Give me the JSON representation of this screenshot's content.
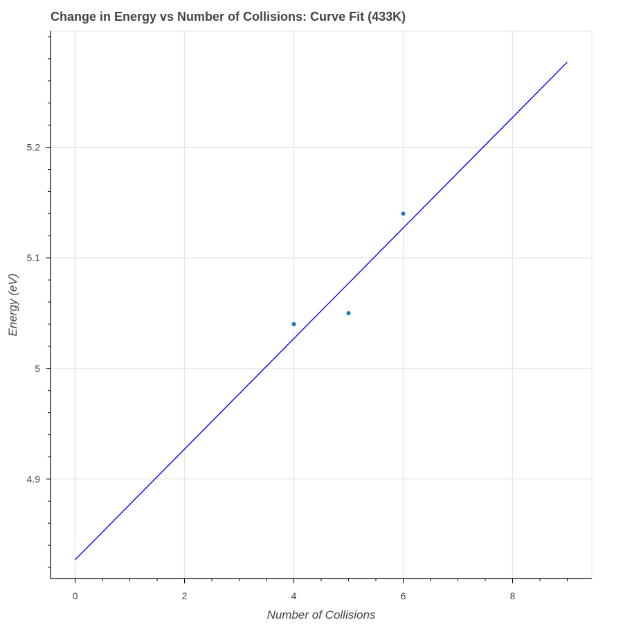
{
  "chart_data": {
    "type": "scatter",
    "title": "Change in Energy vs Number of Collisions: Curve Fit (433K)",
    "xlabel": "Number of Collisions",
    "ylabel": "Energy (eV)",
    "xlim": [
      -0.45,
      9.45
    ],
    "ylim": [
      4.81,
      5.305
    ],
    "xticks": [
      0,
      2,
      4,
      6,
      8
    ],
    "xtick_labels": [
      "0",
      "2",
      "4",
      "6",
      "8"
    ],
    "xminor_step": 0.5,
    "yticks": [
      4.9,
      5.0,
      5.1,
      5.2
    ],
    "ytick_labels": [
      "4.9",
      "5",
      "5.1",
      "5.2"
    ],
    "yminor_step": 0.02,
    "grid": true,
    "series": [
      {
        "kind": "points",
        "color": "#1f77b4",
        "x": [
          4,
          5,
          6
        ],
        "y": [
          5.04,
          5.05,
          5.14
        ]
      },
      {
        "kind": "line",
        "color": "#0000ff",
        "x": [
          0,
          9
        ],
        "y": [
          4.827,
          5.277
        ]
      }
    ]
  }
}
